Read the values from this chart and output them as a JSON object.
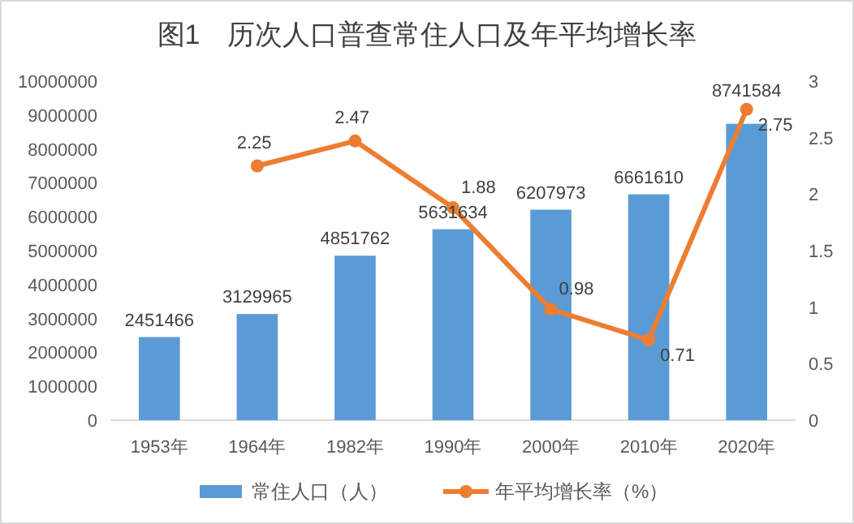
{
  "chart_data": {
    "type": "bar",
    "title": "图1　历次人口普查常住人口及年平均增长率",
    "categories": [
      "1953年",
      "1964年",
      "1982年",
      "1990年",
      "2000年",
      "2010年",
      "2020年"
    ],
    "series": [
      {
        "name": "常住人口（人）",
        "type": "bar",
        "color": "#5b9bd5",
        "values": [
          2451466,
          3129965,
          4851762,
          5631634,
          6207973,
          6661610,
          8741584
        ]
      },
      {
        "name": "年平均增长率（%）",
        "type": "line",
        "axis": "y2",
        "color": "#ed7d31",
        "marker": "circle",
        "values": [
          null,
          2.25,
          2.47,
          1.88,
          0.98,
          0.71,
          2.75
        ]
      }
    ],
    "ylim": [
      0,
      10000000
    ],
    "yticks": [
      0,
      1000000,
      2000000,
      3000000,
      4000000,
      5000000,
      6000000,
      7000000,
      8000000,
      9000000,
      10000000
    ],
    "y2lim": [
      0,
      3
    ],
    "y2ticks": [
      0,
      0.5,
      1,
      1.5,
      2,
      2.5,
      3
    ],
    "data_labels": true,
    "grid": false,
    "legend": "bottom"
  }
}
